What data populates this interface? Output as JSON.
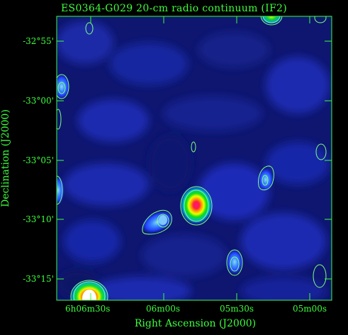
{
  "figure": {
    "title": "ES0364-G029  20-cm radio continuum (IF2)",
    "xlabel": "Right Ascension (J2000)",
    "ylabel": "Declination (J2000)",
    "y_ticks": [
      {
        "label": "-32°55'"
      },
      {
        "label": "-33°00'"
      },
      {
        "label": "-33°05'"
      },
      {
        "label": "-33°10'"
      },
      {
        "label": "-33°15'"
      }
    ],
    "x_ticks": [
      {
        "label": "6h06m30s"
      },
      {
        "label": "06m00s"
      },
      {
        "label": "05m30s"
      },
      {
        "label": "05m00s"
      }
    ],
    "colors": {
      "label": "#3cff3c",
      "contour": "#7dff7d",
      "background_low": "#0a0a55",
      "background_high": "#2a3cff"
    }
  }
}
